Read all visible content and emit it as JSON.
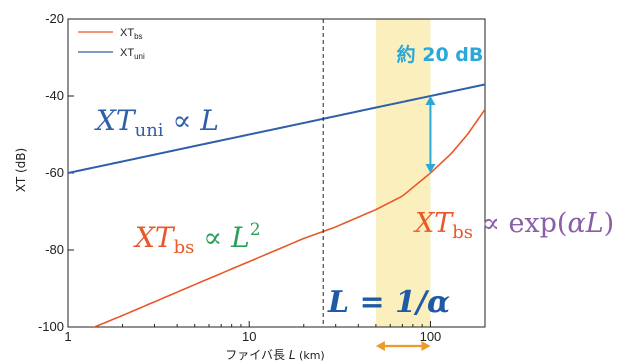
{
  "colors": {
    "bs": "#e8582a",
    "uni": "#2f5fa8",
    "green": "#2aa05a",
    "purple": "#8a5fa8",
    "cyan": "#2aa8d8",
    "blue_bold": "#1f5aa6",
    "orange": "#ec9a2a",
    "highlight": "#fbf0bd"
  },
  "chart_data": {
    "type": "line",
    "xscale": "log",
    "xlim": [
      1,
      200
    ],
    "ylim": [
      -100,
      -20
    ],
    "xticks": [
      1,
      10,
      100
    ],
    "xtick_labels": [
      "1",
      "10",
      "100"
    ],
    "yticks": [
      -100,
      -80,
      -60,
      -40,
      -20
    ],
    "ytick_labels": [
      "-100",
      "-80",
      "-60",
      "-40",
      "-20"
    ],
    "xlabel": {
      "main": "ファイバ長 ",
      "var": "L",
      "unit": " (km)"
    },
    "ylabel": "XT (dB)",
    "legend_position": "top-left",
    "legend": [
      {
        "key": "bs",
        "base": "XT",
        "sub": "bs"
      },
      {
        "key": "uni",
        "base": "XT",
        "sub": "uni"
      }
    ],
    "series": [
      {
        "key": "uni",
        "name": "XT_uni",
        "x": [
          1,
          2,
          5,
          10,
          20,
          50,
          100,
          200
        ],
        "y": [
          -60,
          -57,
          -53,
          -50,
          -47,
          -43,
          -40,
          -37
        ]
      },
      {
        "key": "bs",
        "name": "XT_bs",
        "x": [
          1,
          1.4,
          2,
          5,
          10,
          20,
          30,
          50,
          70,
          100,
          130,
          160,
          200
        ],
        "y": [
          -103.5,
          -100,
          -97,
          -89,
          -83,
          -77,
          -74,
          -69.5,
          -66,
          -60,
          -55,
          -50,
          -43.5
        ]
      }
    ],
    "vline_x": 25.6,
    "highlight_x": [
      50,
      100
    ],
    "arrow_x": 100,
    "arrow_y": [
      -40,
      -60
    ],
    "range_arrow_x": [
      50,
      100
    ],
    "annotations": {
      "db_gap": "約 20 dB",
      "uni": {
        "base": "XT",
        "sub": "uni",
        "rel": " ∝ ",
        "var": "L"
      },
      "bs_sq": {
        "base": "XT",
        "sub": "bs",
        "rel": " ∝ ",
        "var": "L",
        "sup": "2"
      },
      "bs_exp": {
        "base": "XT",
        "sub": "bs",
        "rel": " ∝ ",
        "func": "exp(",
        "var": "αL",
        "close": ")"
      },
      "crossover": "L = 1/α"
    }
  }
}
